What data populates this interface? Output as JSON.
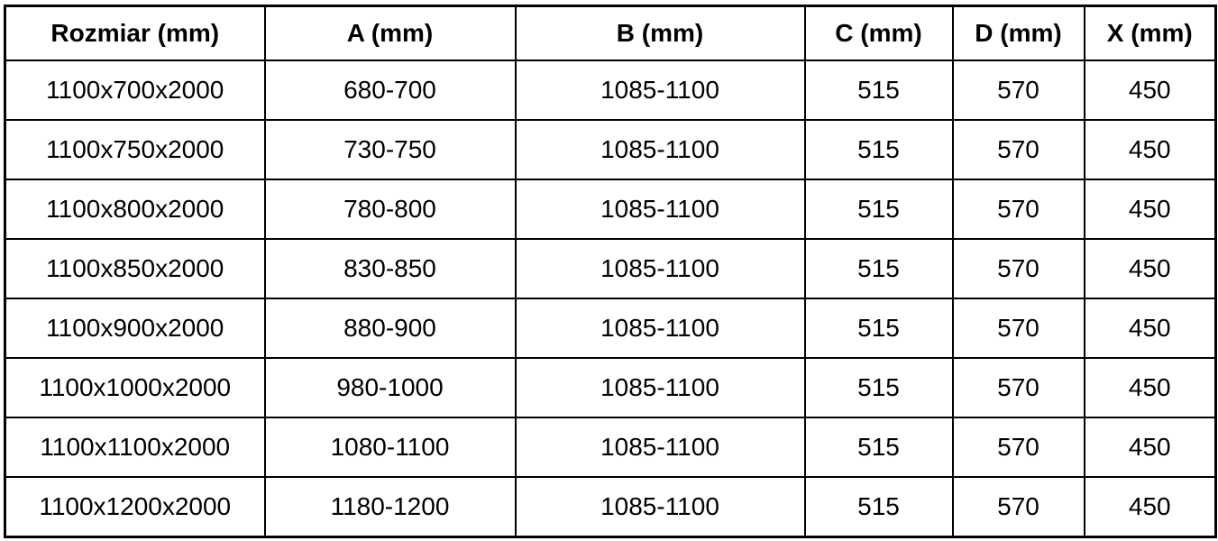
{
  "table": {
    "columns": [
      "Rozmiar (mm)",
      "A (mm)",
      "B (mm)",
      "C (mm)",
      "D (mm)",
      "X (mm)"
    ],
    "rows": [
      [
        "1100x700x2000",
        "680-700",
        "1085-1100",
        "515",
        "570",
        "450"
      ],
      [
        "1100x750x2000",
        "730-750",
        "1085-1100",
        "515",
        "570",
        "450"
      ],
      [
        "1100x800x2000",
        "780-800",
        "1085-1100",
        "515",
        "570",
        "450"
      ],
      [
        "1100x850x2000",
        "830-850",
        "1085-1100",
        "515",
        "570",
        "450"
      ],
      [
        "1100x900x2000",
        "880-900",
        "1085-1100",
        "515",
        "570",
        "450"
      ],
      [
        "1100x1000x2000",
        "980-1000",
        "1085-1100",
        "515",
        "570",
        "450"
      ],
      [
        "1100x1100x2000",
        "1080-1100",
        "1085-1100",
        "515",
        "570",
        "450"
      ],
      [
        "1100x1200x2000",
        "1180-1200",
        "1085-1100",
        "515",
        "570",
        "450"
      ]
    ]
  },
  "colors": {
    "border": "#000000",
    "text": "#000000",
    "background": "#ffffff"
  }
}
